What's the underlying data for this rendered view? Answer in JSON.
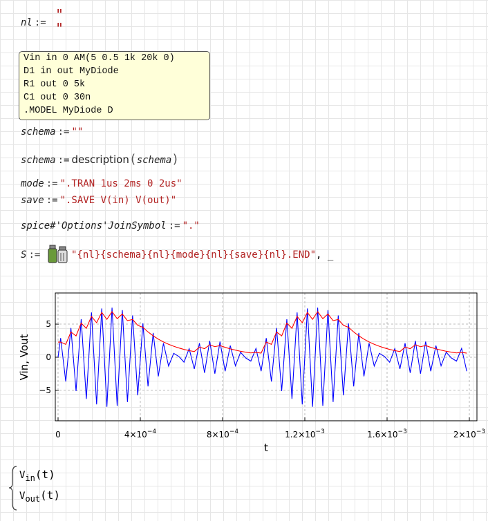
{
  "worksheet": {
    "nl": {
      "name": "nl",
      "assign": ":=",
      "quotes": [
        "\"",
        "\""
      ]
    },
    "netlist": [
      "Vin in 0 AM(5 0.5 1k 20k 0)",
      "D1 in out MyDiode",
      "R1 out 0 5k",
      "C1 out 0 30n",
      ".MODEL MyDiode D"
    ],
    "schema_empty": {
      "name": "schema",
      "assign": ":=",
      "value": "\"\""
    },
    "schema_desc": {
      "name": "schema",
      "assign": ":=",
      "func": "description",
      "open": "(",
      "arg": "schema",
      "close": ")"
    },
    "mode": {
      "name": "mode",
      "assign": ":=",
      "value": "\".TRAN 1us 2ms 0 2us\""
    },
    "save": {
      "name": "save",
      "assign": ":=",
      "value": "\".SAVE V(in) V(out)\""
    },
    "join": {
      "name": "spice#'Options'JoinSymbol",
      "assign": ":=",
      "value": "\".\""
    },
    "s": {
      "name": "S",
      "assign": ":=",
      "value": "\"{nl}{schema}{nl}{mode}{nl}{save}{nl}.END\"",
      "rest": ", _"
    },
    "outputs": [
      {
        "base": "V",
        "sub": "in",
        "arg": "(t)"
      },
      {
        "base": "V",
        "sub": "out",
        "arg": "(t)"
      }
    ]
  },
  "chart_data": {
    "type": "line",
    "xlabel": "t",
    "ylabel": "Vin, Vout",
    "x": [
      0,
      1.25e-05,
      3.75e-05,
      6.25e-05,
      8.75e-05,
      0.0001125,
      0.0001375,
      0.0001625,
      0.0001875,
      0.0002125,
      0.0002375,
      0.0002625,
      0.0002875,
      0.0003125,
      0.0003375,
      0.0003625,
      0.0003875,
      0.0004125,
      0.0004375,
      0.0004625,
      0.0004875,
      0.0005125,
      0.0005375,
      0.0005625,
      0.0005875,
      0.0006125,
      0.0006375,
      0.0006625,
      0.0006875,
      0.0007125,
      0.0007375,
      0.0007625,
      0.0007875,
      0.0008125,
      0.0008375,
      0.0008625,
      0.0008875,
      0.0009125,
      0.0009375,
      0.0009625,
      0.0009875,
      0.0010125,
      0.0010375,
      0.0010625,
      0.0010875,
      0.0011125,
      0.0011375,
      0.0011625,
      0.0011875,
      0.0012125,
      0.0012375,
      0.0012625,
      0.0012875,
      0.0013125,
      0.0013375,
      0.0013625,
      0.0013875,
      0.0014125,
      0.0014375,
      0.0014625,
      0.0014875,
      0.0015125,
      0.0015375,
      0.0015625,
      0.0015875,
      0.0016125,
      0.0016375,
      0.0016625,
      0.0016875,
      0.0017125,
      0.0017375,
      0.0017625,
      0.0017875,
      0.0018125,
      0.0018375,
      0.0018625,
      0.0018875,
      0.0019125,
      0.0019375,
      0.0019625,
      0.0019875
    ],
    "series": [
      {
        "name": "Vin",
        "color": "#0000ff",
        "values": [
          0,
          2.89,
          -3.67,
          4.41,
          -5.11,
          5.75,
          -6.3,
          6.76,
          -7.12,
          7.36,
          -7.48,
          7.48,
          -7.36,
          7.12,
          -6.76,
          6.3,
          -5.75,
          5.11,
          -4.41,
          3.67,
          -2.89,
          2.11,
          -1.33,
          0.59,
          0.11,
          -0.75,
          1.3,
          -1.76,
          2.12,
          -2.36,
          2.48,
          -2.48,
          2.36,
          -2.12,
          1.76,
          -1.3,
          0.75,
          -0.11,
          -0.59,
          1.33,
          -2.11,
          2.89,
          -3.67,
          4.41,
          -5.11,
          5.75,
          -6.3,
          6.76,
          -7.12,
          7.36,
          -7.48,
          7.48,
          -7.36,
          7.12,
          -6.76,
          6.3,
          -5.75,
          5.11,
          -4.41,
          3.67,
          -2.89,
          2.11,
          -1.33,
          0.59,
          0.11,
          -0.75,
          1.3,
          -1.76,
          2.12,
          -2.36,
          2.48,
          -2.48,
          2.36,
          -2.12,
          1.76,
          -1.3,
          0.75,
          -0.11,
          -0.59,
          1.33,
          -2.11
        ]
      },
      {
        "name": "Vout",
        "color": "#ff0000",
        "values": [
          2.29,
          2.29,
          1.94,
          3.81,
          3.22,
          5.15,
          4.36,
          6.16,
          5.21,
          6.76,
          5.72,
          6.88,
          5.82,
          6.52,
          5.52,
          5.7,
          4.82,
          4.51,
          3.82,
          3.23,
          2.73,
          2.31,
          1.95,
          1.65,
          1.4,
          1.18,
          1.0,
          0.85,
          1.52,
          1.29,
          1.88,
          1.59,
          1.76,
          1.49,
          1.26,
          1.07,
          0.9,
          0.76,
          0.65,
          0.73,
          0.62,
          2.29,
          1.94,
          3.81,
          3.22,
          5.15,
          4.36,
          6.16,
          5.21,
          6.76,
          5.72,
          6.88,
          5.82,
          6.52,
          5.52,
          5.7,
          4.82,
          4.51,
          3.82,
          3.23,
          2.73,
          2.31,
          1.95,
          1.65,
          1.4,
          1.18,
          1.0,
          0.85,
          1.52,
          1.29,
          1.88,
          1.59,
          1.76,
          1.49,
          1.26,
          1.07,
          0.9,
          0.76,
          0.65,
          0.73,
          0.62
        ]
      }
    ],
    "xlim": [
      -1.34e-05,
      0.002037
    ],
    "ylim": [
      -9.6,
      9.7
    ],
    "xticks": [
      0,
      {
        "value": 0.0004,
        "label": "4×10",
        "exponent": "−4"
      },
      {
        "value": 0.0008,
        "label": "8×10",
        "exponent": "−4"
      },
      {
        "value": 0.0012,
        "label": "1.2×10",
        "exponent": "−3"
      },
      {
        "value": 0.0016,
        "label": "1.6×10",
        "exponent": "−3"
      },
      {
        "value": 0.002,
        "label": "2×10",
        "exponent": "−3"
      }
    ],
    "yticks": [
      {
        "value": -5,
        "label": "−5"
      },
      0,
      5
    ],
    "grid": true
  }
}
